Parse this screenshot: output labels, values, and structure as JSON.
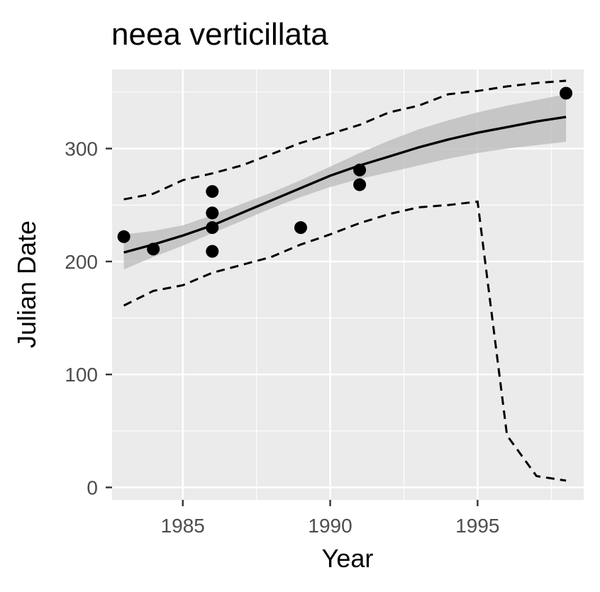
{
  "chart_data": {
    "type": "scatter",
    "title": "neea verticillata",
    "xlabel": "Year",
    "ylabel": "Julian Date",
    "xlim": [
      1982.6,
      1998.6
    ],
    "ylim": [
      -11,
      370
    ],
    "x_ticks": [
      1985,
      1990,
      1995
    ],
    "y_ticks": [
      0,
      100,
      200,
      300
    ],
    "grid": true,
    "legend": "none",
    "colors": {
      "panel_background": "#ebebeb",
      "grid_line": "#ffffff",
      "points": "#000000",
      "fit_line": "#000000",
      "confidence_band": "#bdbdbd",
      "tick_label": "#4d4d4d"
    },
    "points": {
      "x": [
        1983,
        1984,
        1986,
        1986,
        1986,
        1986,
        1989,
        1991,
        1991,
        1998
      ],
      "y": [
        222,
        211,
        262,
        243,
        230,
        209,
        230,
        281,
        268,
        349
      ]
    },
    "fit": {
      "x": [
        1983,
        1984,
        1985,
        1986,
        1987,
        1988,
        1989,
        1990,
        1991,
        1992,
        1993,
        1994,
        1995,
        1996,
        1997,
        1998
      ],
      "y": [
        208,
        215,
        223,
        232,
        243,
        254,
        265,
        276,
        285,
        293,
        301,
        308,
        314,
        319,
        324,
        328
      ]
    },
    "confidence_band": {
      "x": [
        1983,
        1984,
        1985,
        1986,
        1987,
        1988,
        1989,
        1990,
        1991,
        1992,
        1993,
        1994,
        1995,
        1996,
        1997,
        1998
      ],
      "lower": [
        193,
        204,
        214,
        225,
        236,
        247,
        257,
        266,
        273,
        279,
        285,
        291,
        296,
        300,
        303,
        306
      ],
      "upper": [
        224,
        227,
        232,
        241,
        251,
        261,
        272,
        284,
        296,
        307,
        317,
        325,
        332,
        338,
        343,
        348
      ]
    },
    "upper_bound": {
      "x": [
        1983,
        1984,
        1985,
        1986,
        1987,
        1988,
        1989,
        1990,
        1991,
        1992,
        1993,
        1994,
        1995,
        1996,
        1997,
        1998
      ],
      "y": [
        255,
        260,
        272,
        278,
        285,
        295,
        305,
        313,
        321,
        332,
        338,
        348,
        351,
        355,
        358,
        360
      ]
    },
    "lower_bound": {
      "x": [
        1983,
        1984,
        1985,
        1986,
        1987,
        1988,
        1989,
        1990,
        1991,
        1992,
        1993,
        1994,
        1995,
        1996,
        1997,
        1998
      ],
      "y": [
        161,
        174,
        179,
        190,
        197,
        204,
        215,
        224,
        234,
        242,
        248,
        250,
        253,
        46,
        10,
        6
      ]
    }
  }
}
